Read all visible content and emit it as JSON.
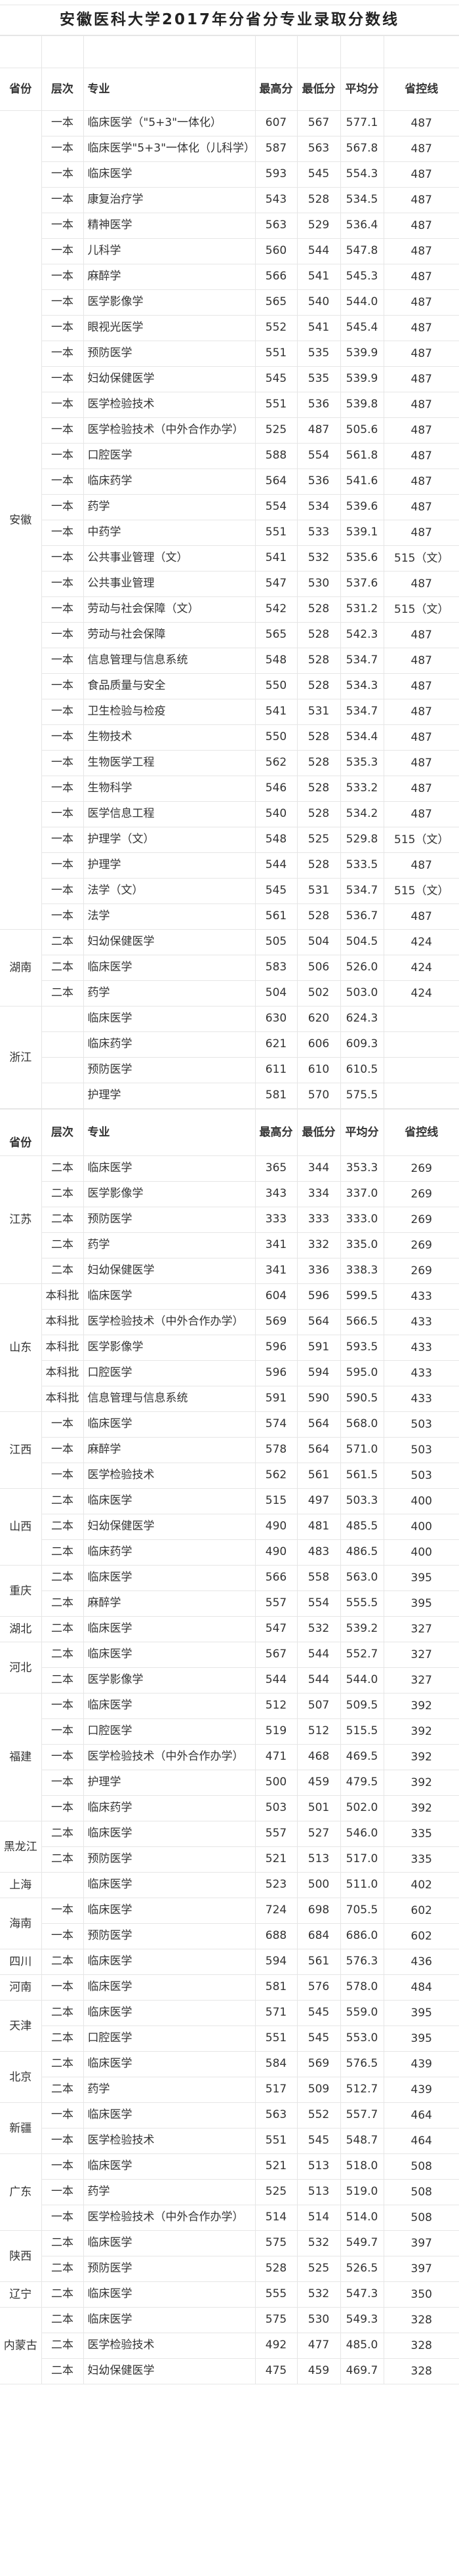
{
  "title": "安徽医科大学2017年分省分专业录取分数线",
  "header": {
    "province": "省份",
    "level": "层次",
    "major": "专业",
    "max": "最高分",
    "min": "最低分",
    "avg": "平均分",
    "control_line": "省控线"
  },
  "tables": [
    {
      "groups": [
        {
          "province": "安徽",
          "rows": [
            [
              "一本",
              "临床医学（\"5+3\"一体化）",
              "607",
              "567",
              "577.1",
              "487"
            ],
            [
              "一本",
              "临床医学\"5+3\"一体化（儿科学）",
              "587",
              "563",
              "567.8",
              "487"
            ],
            [
              "一本",
              "临床医学",
              "593",
              "545",
              "554.3",
              "487"
            ],
            [
              "一本",
              "康复治疗学",
              "543",
              "528",
              "534.5",
              "487"
            ],
            [
              "一本",
              "精神医学",
              "563",
              "529",
              "536.4",
              "487"
            ],
            [
              "一本",
              "儿科学",
              "560",
              "544",
              "547.8",
              "487"
            ],
            [
              "一本",
              "麻醉学",
              "566",
              "541",
              "545.3",
              "487"
            ],
            [
              "一本",
              "医学影像学",
              "565",
              "540",
              "544.0",
              "487"
            ],
            [
              "一本",
              "眼视光医学",
              "552",
              "541",
              "545.4",
              "487"
            ],
            [
              "一本",
              "预防医学",
              "551",
              "535",
              "539.9",
              "487"
            ],
            [
              "一本",
              "妇幼保健医学",
              "545",
              "535",
              "539.9",
              "487"
            ],
            [
              "一本",
              "医学检验技术",
              "551",
              "536",
              "539.8",
              "487"
            ],
            [
              "一本",
              "医学检验技术（中外合作办学）",
              "525",
              "487",
              "505.6",
              "487"
            ],
            [
              "一本",
              "口腔医学",
              "588",
              "554",
              "561.8",
              "487"
            ],
            [
              "一本",
              "临床药学",
              "564",
              "536",
              "541.6",
              "487"
            ],
            [
              "一本",
              "药学",
              "554",
              "534",
              "539.6",
              "487"
            ],
            [
              "一本",
              "中药学",
              "551",
              "533",
              "539.1",
              "487"
            ],
            [
              "一本",
              "公共事业管理（文）",
              "541",
              "532",
              "535.6",
              "515（文）"
            ],
            [
              "一本",
              "公共事业管理",
              "547",
              "530",
              "537.6",
              "487"
            ],
            [
              "一本",
              "劳动与社会保障（文）",
              "542",
              "528",
              "531.2",
              "515（文）"
            ],
            [
              "一本",
              "劳动与社会保障",
              "565",
              "528",
              "542.3",
              "487"
            ],
            [
              "一本",
              "信息管理与信息系统",
              "548",
              "528",
              "534.7",
              "487"
            ],
            [
              "一本",
              "食品质量与安全",
              "550",
              "528",
              "534.3",
              "487"
            ],
            [
              "一本",
              "卫生检验与检疫",
              "541",
              "531",
              "534.7",
              "487"
            ],
            [
              "一本",
              "生物技术",
              "550",
              "528",
              "534.4",
              "487"
            ],
            [
              "一本",
              "生物医学工程",
              "562",
              "528",
              "535.3",
              "487"
            ],
            [
              "一本",
              "生物科学",
              "546",
              "528",
              "533.2",
              "487"
            ],
            [
              "一本",
              "医学信息工程",
              "540",
              "528",
              "534.2",
              "487"
            ],
            [
              "一本",
              "护理学（文）",
              "548",
              "525",
              "529.8",
              "515（文）"
            ],
            [
              "一本",
              "护理学",
              "544",
              "528",
              "533.5",
              "487"
            ],
            [
              "一本",
              "法学（文）",
              "545",
              "531",
              "534.7",
              "515（文）"
            ],
            [
              "一本",
              "法学",
              "561",
              "528",
              "536.7",
              "487"
            ]
          ]
        },
        {
          "province": "湖南",
          "rows": [
            [
              "二本",
              "妇幼保健医学",
              "505",
              "504",
              "504.5",
              "424"
            ],
            [
              "二本",
              "临床医学",
              "583",
              "506",
              "526.0",
              "424"
            ],
            [
              "二本",
              "药学",
              "504",
              "502",
              "503.0",
              "424"
            ]
          ]
        },
        {
          "province": "浙江",
          "rows": [
            [
              "",
              "临床医学",
              "630",
              "620",
              "624.3",
              ""
            ],
            [
              "",
              "临床药学",
              "621",
              "606",
              "609.3",
              ""
            ],
            [
              "",
              "预防医学",
              "611",
              "610",
              "610.5",
              ""
            ],
            [
              "",
              "护理学",
              "581",
              "570",
              "575.5",
              ""
            ]
          ]
        }
      ]
    },
    {
      "groups": [
        {
          "province": "江苏",
          "rows": [
            [
              "二本",
              "临床医学",
              "365",
              "344",
              "353.3",
              "269"
            ],
            [
              "二本",
              "医学影像学",
              "343",
              "334",
              "337.0",
              "269"
            ],
            [
              "二本",
              "预防医学",
              "333",
              "333",
              "333.0",
              "269"
            ],
            [
              "二本",
              "药学",
              "341",
              "332",
              "335.0",
              "269"
            ],
            [
              "二本",
              "妇幼保健医学",
              "341",
              "336",
              "338.3",
              "269"
            ]
          ]
        },
        {
          "province": "山东",
          "rows": [
            [
              "本科批",
              "临床医学",
              "604",
              "596",
              "599.5",
              "433"
            ],
            [
              "本科批",
              "医学检验技术（中外合作办学）",
              "569",
              "564",
              "566.5",
              "433"
            ],
            [
              "本科批",
              "医学影像学",
              "596",
              "591",
              "593.5",
              "433"
            ],
            [
              "本科批",
              "口腔医学",
              "596",
              "594",
              "595.0",
              "433"
            ],
            [
              "本科批",
              "信息管理与信息系统",
              "591",
              "590",
              "590.5",
              "433"
            ]
          ]
        },
        {
          "province": "江西",
          "rows": [
            [
              "一本",
              "临床医学",
              "574",
              "564",
              "568.0",
              "503"
            ],
            [
              "一本",
              "麻醉学",
              "578",
              "564",
              "571.0",
              "503"
            ],
            [
              "一本",
              "医学检验技术",
              "562",
              "561",
              "561.5",
              "503"
            ]
          ]
        },
        {
          "province": "山西",
          "rows": [
            [
              "二本",
              "临床医学",
              "515",
              "497",
              "503.3",
              "400"
            ],
            [
              "二本",
              "妇幼保健医学",
              "490",
              "481",
              "485.5",
              "400"
            ],
            [
              "二本",
              "临床药学",
              "490",
              "483",
              "486.5",
              "400"
            ]
          ]
        },
        {
          "province": "重庆",
          "rows": [
            [
              "二本",
              "临床医学",
              "566",
              "558",
              "563.0",
              "395"
            ],
            [
              "二本",
              "麻醉学",
              "557",
              "554",
              "555.5",
              "395"
            ]
          ]
        },
        {
          "province": "湖北",
          "rows": [
            [
              "二本",
              "临床医学",
              "547",
              "532",
              "539.2",
              "327"
            ]
          ]
        },
        {
          "province": "河北",
          "rows": [
            [
              "二本",
              "临床医学",
              "567",
              "544",
              "552.7",
              "327"
            ],
            [
              "二本",
              "医学影像学",
              "544",
              "544",
              "544.0",
              "327"
            ]
          ]
        },
        {
          "province": "福建",
          "rows": [
            [
              "一本",
              "临床医学",
              "512",
              "507",
              "509.5",
              "392"
            ],
            [
              "一本",
              "口腔医学",
              "519",
              "512",
              "515.5",
              "392"
            ],
            [
              "一本",
              "医学检验技术（中外合作办学）",
              "471",
              "468",
              "469.5",
              "392"
            ],
            [
              "一本",
              "护理学",
              "500",
              "459",
              "479.5",
              "392"
            ],
            [
              "一本",
              "临床药学",
              "503",
              "501",
              "502.0",
              "392"
            ]
          ]
        },
        {
          "province": "黑龙江",
          "rows": [
            [
              "二本",
              "临床医学",
              "557",
              "527",
              "546.0",
              "335"
            ],
            [
              "二本",
              "预防医学",
              "521",
              "513",
              "517.0",
              "335"
            ]
          ]
        },
        {
          "province": "上海",
          "rows": [
            [
              "",
              "临床医学",
              "523",
              "500",
              "511.0",
              "402"
            ]
          ]
        },
        {
          "province": "海南",
          "rows": [
            [
              "一本",
              "临床医学",
              "724",
              "698",
              "705.5",
              "602"
            ],
            [
              "一本",
              "预防医学",
              "688",
              "684",
              "686.0",
              "602"
            ]
          ]
        },
        {
          "province": "四川",
          "rows": [
            [
              "二本",
              "临床医学",
              "594",
              "561",
              "576.3",
              "436"
            ]
          ]
        },
        {
          "province": "河南",
          "rows": [
            [
              "一本",
              "临床医学",
              "581",
              "576",
              "578.0",
              "484"
            ]
          ]
        },
        {
          "province": "天津",
          "rows": [
            [
              "二本",
              "临床医学",
              "571",
              "545",
              "559.0",
              "395"
            ],
            [
              "二本",
              "口腔医学",
              "551",
              "545",
              "553.0",
              "395"
            ]
          ]
        },
        {
          "province": "北京",
          "rows": [
            [
              "二本",
              "临床医学",
              "584",
              "569",
              "576.5",
              "439"
            ],
            [
              "二本",
              "药学",
              "517",
              "509",
              "512.7",
              "439"
            ]
          ]
        },
        {
          "province": "新疆",
          "rows": [
            [
              "一本",
              "临床医学",
              "563",
              "552",
              "557.7",
              "464"
            ],
            [
              "一本",
              "医学检验技术",
              "551",
              "545",
              "548.7",
              "464"
            ]
          ]
        },
        {
          "province": "广东",
          "rows": [
            [
              "一本",
              "临床医学",
              "521",
              "513",
              "518.0",
              "508"
            ],
            [
              "一本",
              "药学",
              "525",
              "513",
              "519.0",
              "508"
            ],
            [
              "一本",
              "医学检验技术（中外合作办学）",
              "514",
              "514",
              "514.0",
              "508"
            ]
          ]
        },
        {
          "province": "陕西",
          "rows": [
            [
              "二本",
              "临床医学",
              "575",
              "532",
              "549.7",
              "397"
            ],
            [
              "二本",
              "预防医学",
              "528",
              "525",
              "526.5",
              "397"
            ]
          ]
        },
        {
          "province": "辽宁",
          "rows": [
            [
              "二本",
              "临床医学",
              "555",
              "532",
              "547.3",
              "350"
            ]
          ]
        },
        {
          "province": "内蒙古",
          "rows": [
            [
              "二本",
              "临床医学",
              "575",
              "530",
              "549.3",
              "328"
            ],
            [
              "二本",
              "医学检验技术",
              "492",
              "477",
              "485.0",
              "328"
            ],
            [
              "二本",
              "妇幼保健医学",
              "475",
              "459",
              "469.7",
              "328"
            ]
          ]
        }
      ]
    }
  ]
}
